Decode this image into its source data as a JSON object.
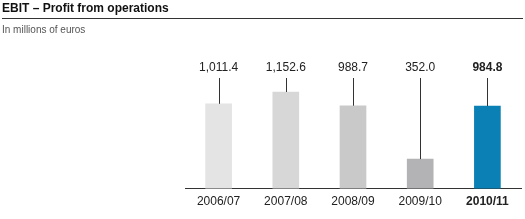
{
  "chart_data": {
    "type": "bar",
    "title": "EBIT – Profit from operations",
    "subtitle": "In millions of euros",
    "categories": [
      "2006/07",
      "2007/08",
      "2008/09",
      "2009/10",
      "2010/11"
    ],
    "values": [
      1011.4,
      1152.6,
      988.7,
      352.0,
      984.8
    ],
    "value_labels": [
      "1,011.4",
      "1,152.6",
      "988.7",
      "352.0",
      "984.8"
    ],
    "colors": [
      "#e4e4e4",
      "#d7d7d7",
      "#c9c9c9",
      "#b3b3b5",
      "#0a80b4"
    ],
    "ylim": [
      0,
      1200
    ],
    "data_labels": true,
    "tick_labels": "x",
    "grid": false
  }
}
